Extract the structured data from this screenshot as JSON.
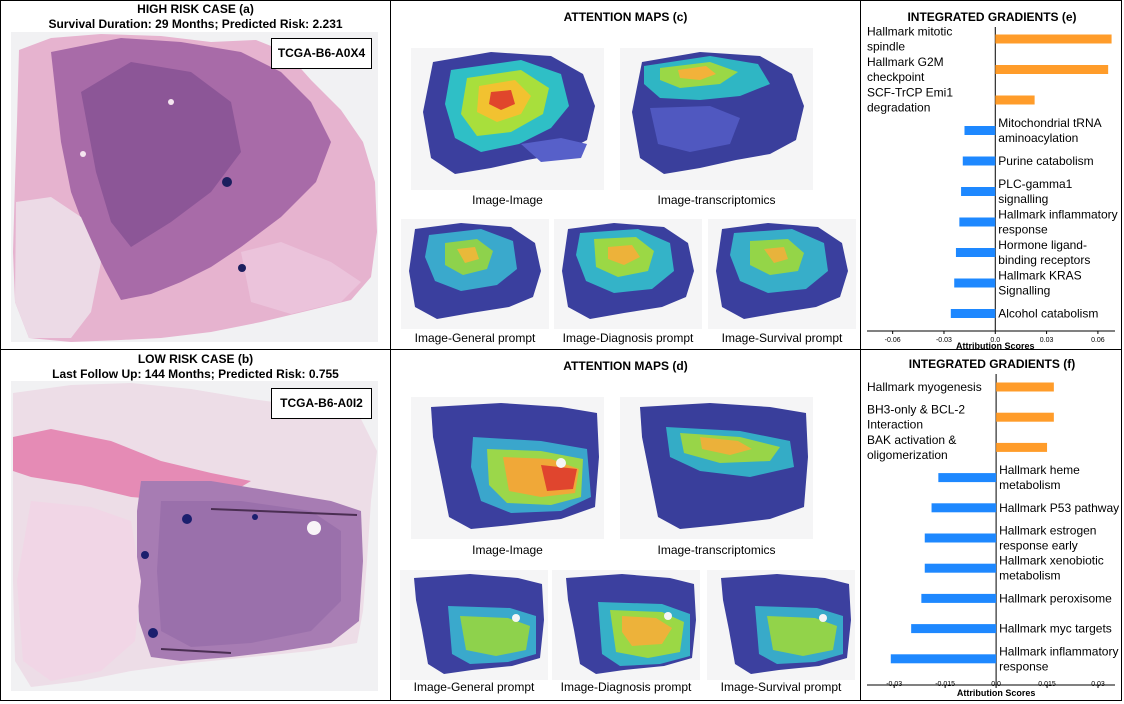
{
  "panels": {
    "a": {
      "title": "HIGH RISK CASE (a)",
      "subtitle": "Survival Duration: 29 Months; Predicted Risk: 2.231",
      "case_id": "TCGA-B6-A0X4"
    },
    "b": {
      "title": "LOW RISK CASE (b)",
      "subtitle": "Last Follow Up: 144 Months; Predicted Risk: 0.755",
      "case_id": "TCGA-B6-A0I2"
    },
    "c": {
      "title": "ATTENTION MAPS (c)",
      "captions": [
        "Image-Image",
        "Image-transcriptomics",
        "Image-General prompt",
        "Image-Diagnosis prompt",
        "Image-Survival prompt"
      ]
    },
    "d": {
      "title": "ATTENTION MAPS (d)",
      "captions": [
        "Image-Image",
        "Image-transcriptomics",
        "Image-General prompt",
        "Image-Diagnosis prompt",
        "Image-Survival prompt"
      ]
    }
  },
  "colors": {
    "positive": "#ff9c2a",
    "negative": "#1e88ff",
    "tissue_pink": "#d98ab8",
    "tissue_purple": "#8a5a9e"
  },
  "chart_data": [
    {
      "type": "bar",
      "orientation": "horizontal",
      "title": "INTEGRATED GRADIENTS (e)",
      "xlabel": "Attribution Scores",
      "ylabel": "",
      "xlim": [
        -0.075,
        0.07
      ],
      "xticks": [
        -0.06,
        -0.03,
        0.0,
        0.03,
        0.06
      ],
      "xtick_labels": [
        "-0.06",
        "-0.03",
        "0.0",
        "0.03",
        "0.06"
      ],
      "categories": [
        [
          "Hallmark mitotic",
          "spindle"
        ],
        [
          "Hallmark G2M",
          "checkpoint"
        ],
        [
          "SCF-TrCP Emi1",
          "degradation"
        ],
        [
          "Mitochondrial tRNA",
          "aminoacylation"
        ],
        [
          "Purine catabolism"
        ],
        [
          "PLC-gamma1",
          "signalling"
        ],
        [
          "Hallmark inflammatory",
          "response"
        ],
        [
          "Hormone ligand-",
          "binding receptors"
        ],
        [
          "Hallmark KRAS",
          "Signalling"
        ],
        [
          "Alcohol catabolism"
        ]
      ],
      "values": [
        0.068,
        0.066,
        0.023,
        -0.018,
        -0.019,
        -0.02,
        -0.021,
        -0.023,
        -0.024,
        -0.026
      ]
    },
    {
      "type": "bar",
      "orientation": "horizontal",
      "title": "INTEGRATED GRADIENTS (f)",
      "xlabel": "Attribution Scores",
      "ylabel": "",
      "xlim": [
        -0.038,
        0.035
      ],
      "xticks": [
        -0.03,
        -0.015,
        0.0,
        0.015,
        0.03
      ],
      "xtick_labels": [
        "-0.03",
        "-0.015",
        "0.0",
        "0.015",
        "0.03"
      ],
      "categories": [
        [
          "Hallmark myogenesis"
        ],
        [
          "BH3-only & BCL-2",
          "Interaction"
        ],
        [
          "BAK activation &",
          "oligomerization"
        ],
        [
          "Hallmark heme",
          "metabolism"
        ],
        [
          "Hallmark P53 pathway"
        ],
        [
          "Hallmark estrogen",
          "response early"
        ],
        [
          "Hallmark xenobiotic",
          "metabolism"
        ],
        [
          "Hallmark peroxisome"
        ],
        [
          "Hallmark myc targets"
        ],
        [
          "Hallmark inflammatory",
          "response"
        ]
      ],
      "values": [
        0.017,
        0.017,
        0.015,
        -0.017,
        -0.019,
        -0.021,
        -0.021,
        -0.022,
        -0.025,
        -0.031
      ]
    }
  ]
}
